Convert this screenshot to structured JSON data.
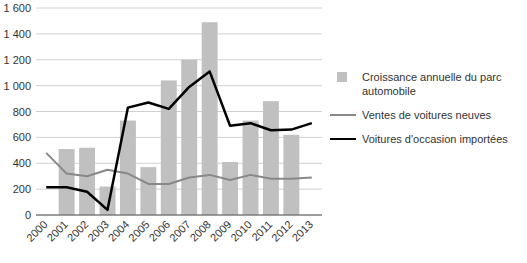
{
  "chart_data": {
    "type": "bar",
    "categories": [
      "2000",
      "2001",
      "2002",
      "2003",
      "2004",
      "2005",
      "2006",
      "2007",
      "2008",
      "2009",
      "2010",
      "2011",
      "2012",
      "2013"
    ],
    "series": [
      {
        "name": "Croissance annuelle du parc automobile",
        "type": "bar",
        "color": "#c0c0c0",
        "values": [
          null,
          510,
          520,
          220,
          730,
          370,
          1040,
          1200,
          1490,
          410,
          730,
          880,
          620,
          null
        ]
      },
      {
        "name": "Ventes de voitures neuves",
        "type": "line",
        "color": "#888888",
        "values": [
          480,
          320,
          300,
          350,
          320,
          240,
          240,
          290,
          310,
          270,
          310,
          280,
          280,
          290
        ]
      },
      {
        "name": "Voitures d'occasion importées",
        "type": "line",
        "color": "#000000",
        "values": [
          215,
          215,
          180,
          40,
          830,
          870,
          820,
          990,
          1110,
          690,
          710,
          655,
          660,
          710
        ]
      }
    ],
    "ylim": [
      0,
      1600
    ],
    "yticks": [
      0,
      200,
      400,
      600,
      800,
      {
        "value": 1000,
        "label": "1 000"
      },
      {
        "value": 1200,
        "label": "1 200"
      },
      {
        "value": 1400,
        "label": "1 400"
      },
      {
        "value": 1600,
        "label": "1 600"
      }
    ],
    "grid": true,
    "legend": "right"
  }
}
